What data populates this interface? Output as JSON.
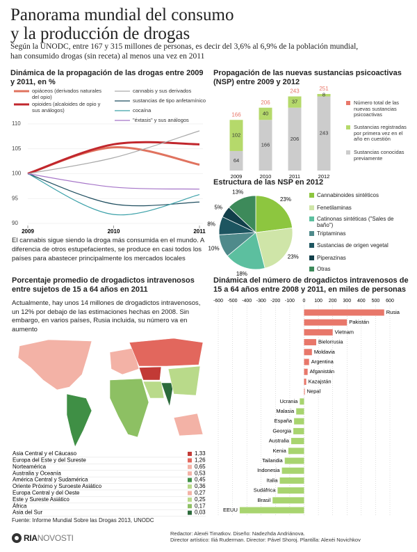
{
  "header": {
    "title": [
      "Panorama mundial del consumo",
      "y la producción de drogas"
    ],
    "subtitle": [
      "Según la UNODC, entre 167 y 315 millones de personas, es decir del 3,6% al 6,9% de la población mundial,",
      "han consumido drogas (sin receta) al menos una vez en 2011"
    ]
  },
  "chart_data": [
    {
      "type": "line",
      "title": "Dinámica de la propagación de las drogas entre 2009 y 2011, en %",
      "x": [
        2009,
        2010,
        2011
      ],
      "xlim": [
        2009,
        2011
      ],
      "xticks": [
        2009,
        2010,
        2011
      ],
      "ylim": [
        90,
        110
      ],
      "yticks": [
        90,
        95,
        100,
        105,
        110
      ],
      "grid": true,
      "series": [
        {
          "name": "opiáceos (derivados naturales del opio)",
          "color": "#e0735f",
          "linewidth": 3,
          "values": [
            100,
            105.3,
            101.8
          ]
        },
        {
          "name": "opioides (alcaloides de opio y sus análogos)",
          "color": "#c1272d",
          "linewidth": 3,
          "values": [
            100,
            105.9,
            105.9
          ]
        },
        {
          "name": "cannabis y sus derivados",
          "color": "#aaaaaa",
          "linewidth": 1.2,
          "values": [
            100,
            103.2,
            108.6
          ]
        },
        {
          "name": "sustancias de tipo anfetamínico",
          "color": "#1f4e5f",
          "linewidth": 1.2,
          "values": [
            100,
            93.9,
            94.3
          ]
        },
        {
          "name": "cocaína",
          "color": "#3aa0a8",
          "linewidth": 1.2,
          "values": [
            100,
            91.8,
            95.8
          ]
        },
        {
          "name": "\"éxtasis\" y sus análogos",
          "color": "#a574c8",
          "linewidth": 1.2,
          "values": [
            100,
            97.3,
            96.9
          ]
        }
      ],
      "caption": "El cannabis sigue siendo la droga más consumida en el mundo. A diferencia de otros estupefacientes, se produce en casi todos los países para abastecer principalmente los mercados locales"
    },
    {
      "type": "stacked-bar",
      "title": "Propagación de las nuevas sustancias psicoactivas (NSP) entre 2009 y 2012",
      "categories": [
        "2009",
        "2010",
        "2011",
        "2012"
      ],
      "series": [
        {
          "name": "Sustancias conocidas previamente",
          "color": "#cccccc",
          "values": [
            64,
            166,
            206,
            243
          ]
        },
        {
          "name": "Sustancias registradas por primera vez en el año en cuestión",
          "color": "#b5d96b",
          "values": [
            102,
            40,
            37,
            8
          ]
        }
      ],
      "total": {
        "name": "Número total de las nuevas sustancias psicoactivas",
        "color": "#e8776a",
        "values": [
          166,
          206,
          243,
          251
        ]
      }
    },
    {
      "type": "pie",
      "title": "Estructura de las NSP en 2012",
      "categories": [
        "Cannabinoides sintéticos",
        "Fenetilaminas",
        "Catinonas sintéticas (\"Sales de baño\")",
        "Triptaminas",
        "Sustancias de origen vegetal",
        "Piperazinas",
        "Otras"
      ],
      "values": [
        23,
        23,
        18,
        10,
        8,
        5,
        13
      ],
      "value_labels": [
        "23%",
        "23%",
        "18%",
        "10%",
        "8%",
        "5%",
        "13%"
      ],
      "colors": [
        "#8dc63f",
        "#cfe5a8",
        "#5cbf9f",
        "#4f8a8b",
        "#1d5560",
        "#123f4a",
        "#3d8a5a"
      ]
    },
    {
      "type": "table",
      "title": "Porcentaje promedio de drogadictos intravenosos entre sujetos de 15 a 64 años en 2011",
      "text": "Actualmente, hay unos 14 millones de drogadictos intravenosos, un 12% por debajo de las estimaciones hechas en 2008. Sin embargo, en varios países, Rusia incluida, su número va en aumento",
      "categories": [
        "Asia Central y el Cáucaso",
        "Europa del Este y del Sureste",
        "Norteamérica",
        "Australia y Oceanía",
        "América Central y Sudamérica",
        "Oriente Próximo y Suroeste Asiático",
        "Europa Central y del Oeste",
        "Este y Sureste Asiático",
        "África",
        "Asia del Sur"
      ],
      "values": [
        1.33,
        1.26,
        0.65,
        0.53,
        0.45,
        0.36,
        0.27,
        0.25,
        0.17,
        0.03
      ],
      "value_labels": [
        "1,33",
        "1,26",
        "0,65",
        "0,53",
        "0,45",
        "0,36",
        "0,27",
        "0,25",
        "0,17",
        "0,03"
      ],
      "colors": [
        "#c23a36",
        "#e2675d",
        "#f3b2a6",
        "#f3b2a6",
        "#3f8f45",
        "#b9da8a",
        "#f3b2a6",
        "#b9da8a",
        "#8dc063",
        "#2b6a3a"
      ]
    },
    {
      "type": "hbar",
      "title": "Dinámica del número de drogadictos intravenosos de 15 a 64 años entre 2008 y 2011, en miles de personas",
      "categories": [
        "Rusia",
        "Pakistán",
        "Vietnam",
        "Bielorrusia",
        "Moldavia",
        "Argentina",
        "Afganistán",
        "Kazajstán",
        "Nepal",
        "Ucrania",
        "Malasia",
        "España",
        "Georgia",
        "Australia",
        "Kenia",
        "Tailandia",
        "Indonesia",
        "Italia",
        "Sudáfrica",
        "Brasil",
        "EEUU"
      ],
      "values": [
        560,
        300,
        200,
        85,
        55,
        35,
        25,
        15,
        5,
        -30,
        -55,
        -70,
        -75,
        -90,
        -110,
        -135,
        -155,
        -170,
        -185,
        -220,
        -450
      ],
      "xlim": [
        -600,
        600
      ],
      "xticks": [
        -600,
        -500,
        -400,
        -300,
        -200,
        -100,
        0,
        100,
        200,
        300,
        400,
        500,
        600
      ],
      "grid": true,
      "color_positive": "#e8776a",
      "color_negative": "#a8d46f"
    }
  ],
  "footer": {
    "source": "Fuente: Informe Mundial Sobre las Drogas 2013, UNODC",
    "logo": [
      "RIA",
      "NOVOSTI"
    ],
    "credits": [
      "Redactor: Alexéi Timatkov. Diseño: Nadezhda Andriánova.",
      "Director artístico: Iliá Ruderman. Director: Pável Shoroj. Plantilla: Alexéi Novichkov"
    ]
  }
}
